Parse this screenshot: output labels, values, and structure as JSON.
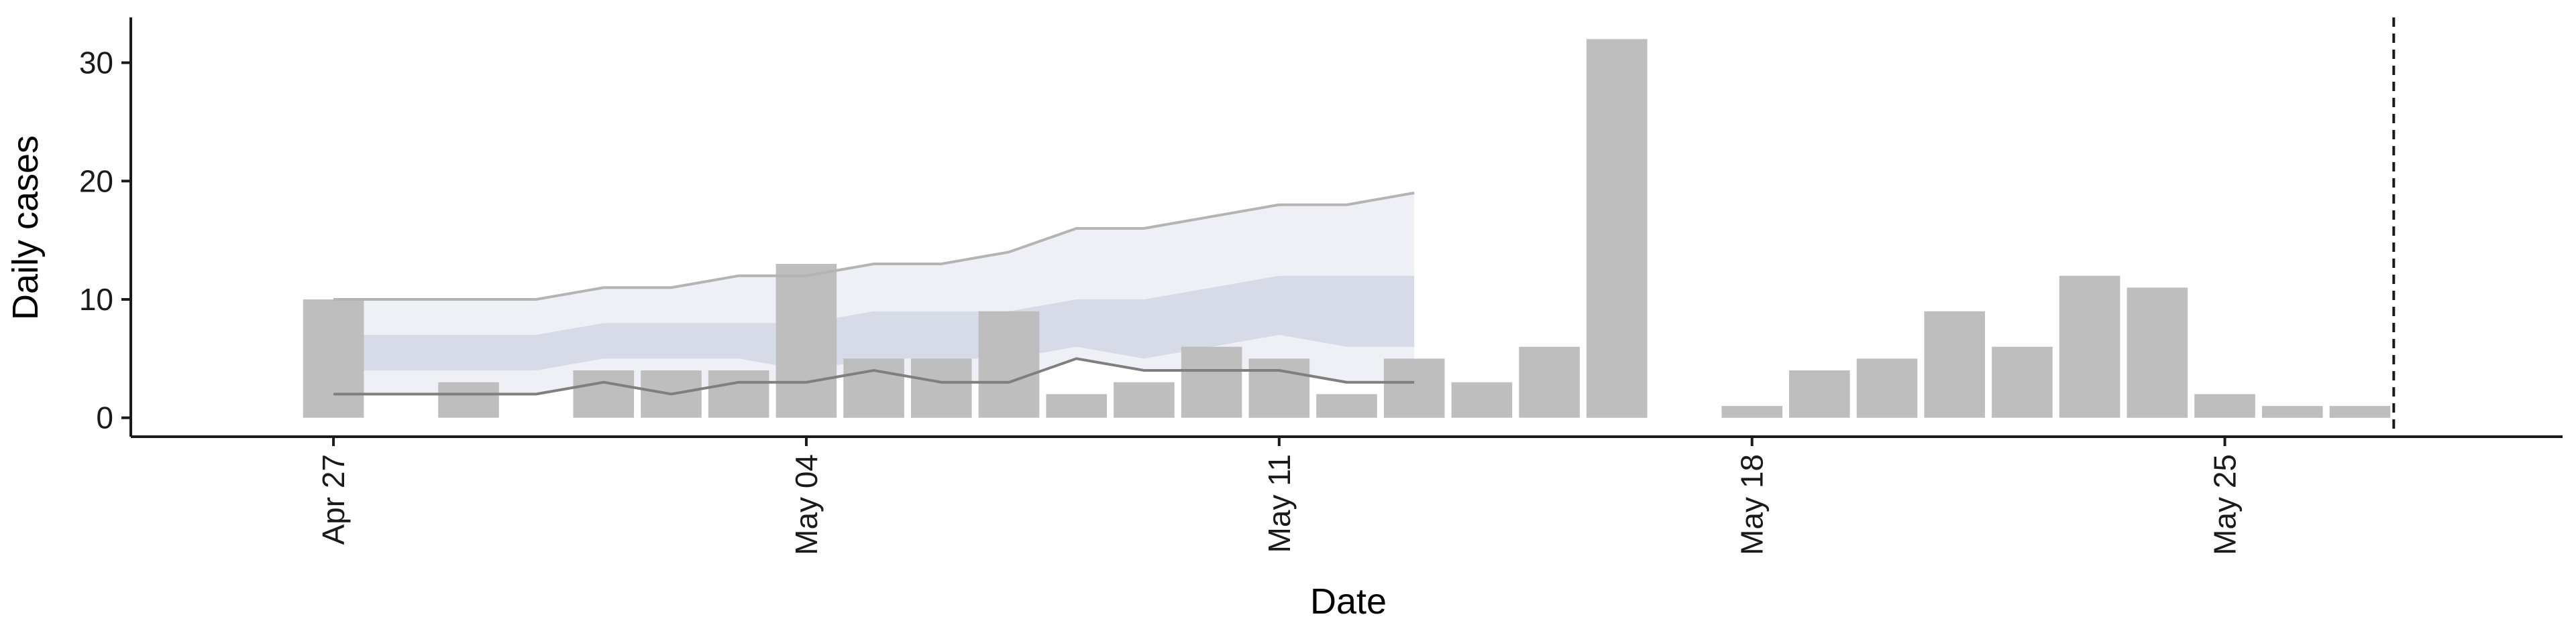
{
  "chart_data": {
    "type": "bar",
    "xlabel": "Date",
    "ylabel": "Daily cases",
    "ylim": [
      -1.6,
      33.6
    ],
    "xlim": [
      "2020-04-24",
      "2020-05-30"
    ],
    "x_ticks": [
      {
        "date": "2020-04-27",
        "label": "Apr 27"
      },
      {
        "date": "2020-05-04",
        "label": "May 04"
      },
      {
        "date": "2020-05-11",
        "label": "May 11"
      },
      {
        "date": "2020-05-18",
        "label": "May 18"
      },
      {
        "date": "2020-05-25",
        "label": "May 25"
      }
    ],
    "y_ticks": [
      0,
      10,
      20,
      30
    ],
    "bars": [
      {
        "date": "2020-04-27",
        "value": 10
      },
      {
        "date": "2020-04-28",
        "value": 0
      },
      {
        "date": "2020-04-29",
        "value": 3
      },
      {
        "date": "2020-04-30",
        "value": 0
      },
      {
        "date": "2020-05-01",
        "value": 4
      },
      {
        "date": "2020-05-02",
        "value": 4
      },
      {
        "date": "2020-05-03",
        "value": 4
      },
      {
        "date": "2020-05-04",
        "value": 13
      },
      {
        "date": "2020-05-05",
        "value": 5
      },
      {
        "date": "2020-05-06",
        "value": 5
      },
      {
        "date": "2020-05-07",
        "value": 9
      },
      {
        "date": "2020-05-08",
        "value": 2
      },
      {
        "date": "2020-05-09",
        "value": 3
      },
      {
        "date": "2020-05-10",
        "value": 6
      },
      {
        "date": "2020-05-11",
        "value": 5
      },
      {
        "date": "2020-05-12",
        "value": 2
      },
      {
        "date": "2020-05-13",
        "value": 5
      },
      {
        "date": "2020-05-14",
        "value": 3
      },
      {
        "date": "2020-05-15",
        "value": 6
      },
      {
        "date": "2020-05-16",
        "value": 32
      },
      {
        "date": "2020-05-17",
        "value": 0
      },
      {
        "date": "2020-05-18",
        "value": 1
      },
      {
        "date": "2020-05-19",
        "value": 4
      },
      {
        "date": "2020-05-20",
        "value": 5
      },
      {
        "date": "2020-05-21",
        "value": 9
      },
      {
        "date": "2020-05-22",
        "value": 6
      },
      {
        "date": "2020-05-23",
        "value": 12
      },
      {
        "date": "2020-05-24",
        "value": 11
      },
      {
        "date": "2020-05-25",
        "value": 2
      },
      {
        "date": "2020-05-26",
        "value": 1
      },
      {
        "date": "2020-05-27",
        "value": 1
      }
    ],
    "forecast": {
      "dates": [
        "2020-04-27",
        "2020-04-28",
        "2020-04-29",
        "2020-04-30",
        "2020-05-01",
        "2020-05-02",
        "2020-05-03",
        "2020-05-04",
        "2020-05-05",
        "2020-05-06",
        "2020-05-07",
        "2020-05-08",
        "2020-05-09",
        "2020-05-10",
        "2020-05-11",
        "2020-05-12",
        "2020-05-13"
      ],
      "outer_lower": [
        2,
        2,
        2,
        2,
        3,
        2,
        3,
        3,
        4,
        3,
        3,
        5,
        4,
        4,
        4,
        3,
        3
      ],
      "outer_upper": [
        10,
        10,
        10,
        10,
        11,
        11,
        12,
        12,
        13,
        13,
        14,
        16,
        16,
        17,
        18,
        18,
        19
      ],
      "inner_lower": [
        4,
        4,
        4,
        4,
        5,
        5,
        5,
        4,
        5,
        5,
        5,
        6,
        5,
        6,
        7,
        6,
        6
      ],
      "inner_upper": [
        7,
        7,
        7,
        7,
        8,
        8,
        8,
        8,
        9,
        9,
        9,
        10,
        10,
        11,
        12,
        12,
        12
      ]
    },
    "vline_date": "2020-05-27.5",
    "grid": false,
    "colors": {
      "bar": "#bcbcbc",
      "outer_band": "#eceef4",
      "inner_band": "#d2d7e5",
      "upper_line": "#b4b4b4",
      "lower_line": "#7f7f7f",
      "vline": "#1a1a1a",
      "axis": "#1a1a1a"
    }
  }
}
